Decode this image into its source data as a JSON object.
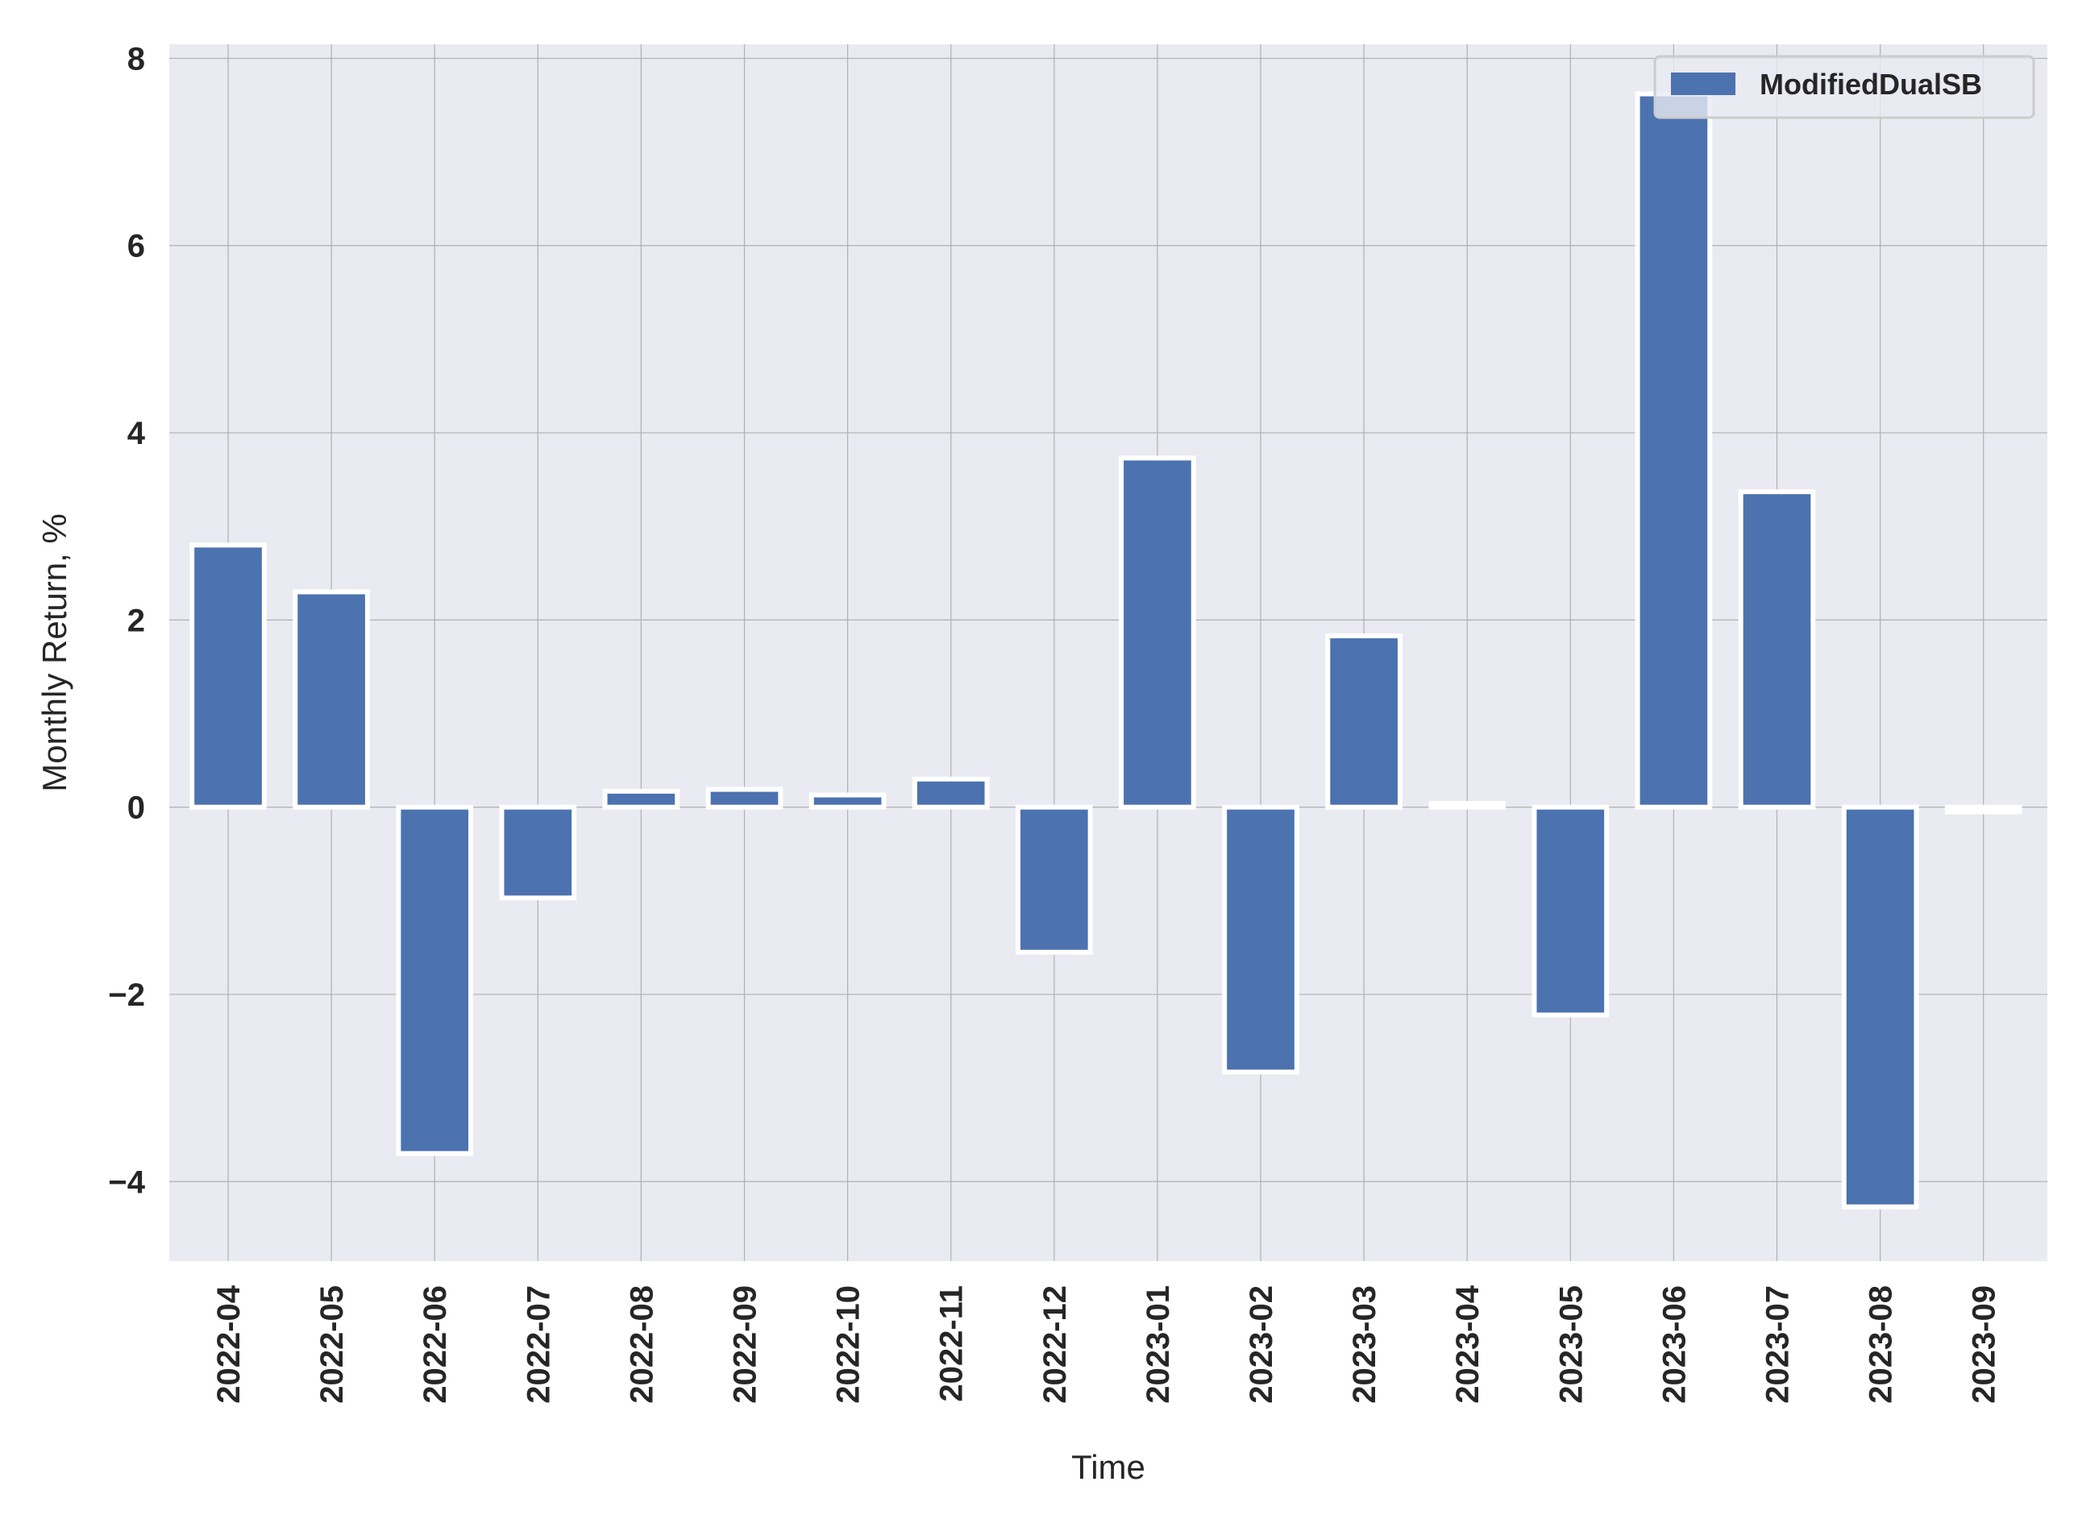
{
  "chart_data": {
    "type": "bar",
    "categories": [
      "2022-04",
      "2022-05",
      "2022-06",
      "2022-07",
      "2022-08",
      "2022-09",
      "2022-10",
      "2022-11",
      "2022-12",
      "2023-01",
      "2023-02",
      "2023-03",
      "2023-04",
      "2023-05",
      "2023-06",
      "2023-07",
      "2023-08",
      "2023-09"
    ],
    "series": [
      {
        "name": "ModifiedDualSB",
        "values": [
          2.8,
          2.3,
          -3.7,
          -0.97,
          0.17,
          0.19,
          0.13,
          0.3,
          -1.55,
          3.73,
          -2.83,
          1.83,
          0.04,
          -2.22,
          7.62,
          3.37,
          -4.27,
          -0.05
        ],
        "color": "#4c72b0"
      }
    ],
    "xlabel": "Time",
    "ylabel": "Monthly Return, %",
    "ylim": [
      -4.85,
      8.15
    ],
    "yticks": [
      -4,
      -2,
      0,
      2,
      4,
      6,
      8
    ],
    "ytick_labels": [
      "−4",
      "−2",
      "0",
      "2",
      "4",
      "6",
      "8"
    ],
    "grid": true,
    "legend_position": "top-right",
    "background_color": "#eaeaf2",
    "grid_color": "#b0b0b0",
    "bar_edge_color": "#ffffff"
  }
}
